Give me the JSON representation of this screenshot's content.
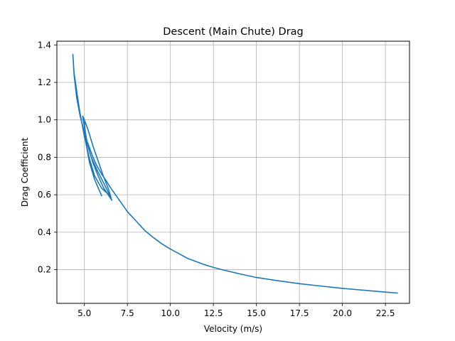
{
  "chart_data": {
    "type": "line",
    "title": "Descent (Main Chute) Drag",
    "xlabel": "Velocity (m/s)",
    "ylabel": "Drag Coefficient",
    "xlim": [
      3.4,
      23.9
    ],
    "ylim": [
      0.02,
      1.42
    ],
    "xticks": [
      5.0,
      7.5,
      10.0,
      12.5,
      15.0,
      17.5,
      20.0,
      22.5
    ],
    "xtick_labels": [
      "5.0",
      "7.5",
      "10.0",
      "12.5",
      "15.0",
      "17.5",
      "20.0",
      "22.5"
    ],
    "yticks": [
      0.2,
      0.4,
      0.6,
      0.8,
      1.0,
      1.2,
      1.4
    ],
    "ytick_labels": [
      "0.2",
      "0.4",
      "0.6",
      "0.8",
      "1.0",
      "1.2",
      "1.4"
    ],
    "grid": true,
    "line_color": "#1f77b4",
    "series": [
      {
        "name": "",
        "x": [
          23.2,
          22.5,
          21.0,
          20.0,
          18.5,
          17.5,
          16.0,
          15.0,
          14.0,
          13.0,
          12.5,
          12.0,
          11.0,
          10.0,
          9.5,
          9.0,
          8.5,
          8.0,
          7.5,
          7.0,
          6.5,
          6.3,
          6.0,
          5.7,
          5.5,
          5.3,
          5.1,
          4.95,
          4.75,
          4.55,
          4.4,
          4.33,
          4.4,
          4.7,
          5.0,
          5.3,
          5.6,
          6.0,
          6.3,
          6.55,
          6.4,
          6.1,
          5.8,
          5.5,
          5.2,
          5.0,
          4.9,
          5.0,
          5.2,
          5.5,
          5.8,
          6.1,
          6.45,
          6.6,
          6.3,
          5.8,
          5.4,
          5.1,
          5.0,
          5.1,
          5.3,
          5.6,
          6.0
        ],
        "y": [
          0.075,
          0.08,
          0.092,
          0.1,
          0.115,
          0.125,
          0.144,
          0.158,
          0.178,
          0.2,
          0.212,
          0.226,
          0.26,
          0.31,
          0.338,
          0.372,
          0.41,
          0.46,
          0.51,
          0.575,
          0.64,
          0.67,
          0.71,
          0.76,
          0.8,
          0.85,
          0.9,
          0.95,
          1.02,
          1.12,
          1.24,
          1.35,
          1.25,
          1.06,
          0.91,
          0.79,
          0.7,
          0.635,
          0.61,
          0.585,
          0.63,
          0.7,
          0.78,
          0.86,
          0.95,
          1.0,
          1.02,
          0.96,
          0.86,
          0.77,
          0.7,
          0.64,
          0.59,
          0.57,
          0.63,
          0.72,
          0.8,
          0.89,
          0.99,
          0.87,
          0.77,
          0.68,
          0.595
        ]
      }
    ]
  }
}
